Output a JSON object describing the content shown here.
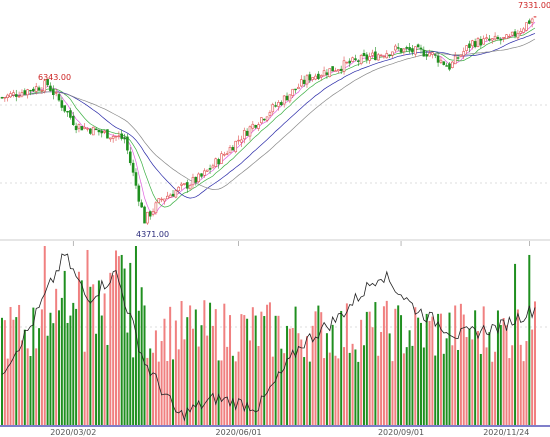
{
  "chart_data": {
    "type": "candlestick",
    "annotations": {
      "high_label": "7331.00",
      "start_label": "6343.00",
      "low_label": "4371.00"
    },
    "price_range": [
      4200,
      7450
    ],
    "x_ticks": [
      {
        "label": "2020/03/02",
        "index": 25
      },
      {
        "label": "2020/06/01",
        "index": 83
      },
      {
        "label": "2020/09/01",
        "index": 140
      },
      {
        "label": "2020/11/24",
        "index": 185
      }
    ],
    "price_anchors": [
      {
        "index": 0,
        "close": 6150
      },
      {
        "index": 16,
        "close": 6343
      },
      {
        "index": 26,
        "close": 5750
      },
      {
        "index": 43,
        "close": 5550
      },
      {
        "index": 50,
        "close": 4371
      },
      {
        "index": 56,
        "close": 4680
      },
      {
        "index": 70,
        "close": 5000
      },
      {
        "index": 88,
        "close": 5750
      },
      {
        "index": 108,
        "close": 6450
      },
      {
        "index": 122,
        "close": 6650
      },
      {
        "index": 138,
        "close": 6850
      },
      {
        "index": 150,
        "close": 6800
      },
      {
        "index": 157,
        "close": 6600
      },
      {
        "index": 165,
        "close": 6950
      },
      {
        "index": 178,
        "close": 7000
      },
      {
        "index": 187,
        "close": 7331
      }
    ],
    "candles": 188,
    "moving_average_colors": [
      "#e060e0",
      "#3cb043",
      "#2a2aa8",
      "#888888"
    ],
    "volume_oscillator_anchors": [
      {
        "index": 0,
        "value": 0.3
      },
      {
        "index": 10,
        "value": 0.55
      },
      {
        "index": 22,
        "value": 0.95
      },
      {
        "index": 30,
        "value": 0.7
      },
      {
        "index": 40,
        "value": 0.85
      },
      {
        "index": 50,
        "value": 0.35
      },
      {
        "index": 62,
        "value": 0.05
      },
      {
        "index": 75,
        "value": 0.15
      },
      {
        "index": 90,
        "value": 0.1
      },
      {
        "index": 105,
        "value": 0.45
      },
      {
        "index": 118,
        "value": 0.6
      },
      {
        "index": 133,
        "value": 0.85
      },
      {
        "index": 145,
        "value": 0.65
      },
      {
        "index": 160,
        "value": 0.5
      },
      {
        "index": 175,
        "value": 0.55
      },
      {
        "index": 187,
        "value": 0.65
      }
    ],
    "up_color": "#e05050",
    "down_color": "#1f8f1f",
    "grid": true
  }
}
